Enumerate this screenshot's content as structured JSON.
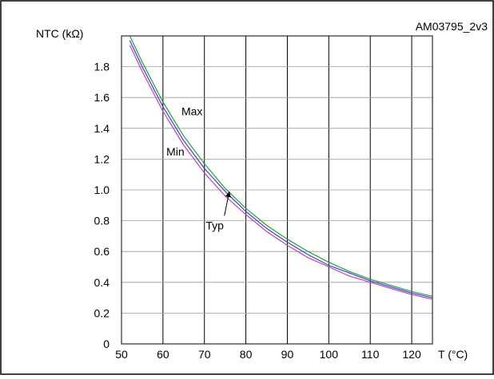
{
  "chart_data": {
    "type": "line",
    "title": "",
    "figure_id": "AM03795_2v3",
    "ylabel": "NTC (kΩ)",
    "xlabel": "T (°C)",
    "xlim": [
      50,
      125
    ],
    "ylim": [
      0,
      2.0
    ],
    "x_ticks": [
      50,
      60,
      70,
      80,
      90,
      100,
      110,
      120
    ],
    "y_ticks": [
      0,
      0.2,
      0.4,
      0.6,
      0.8,
      1.0,
      1.2,
      1.4,
      1.6,
      1.8
    ],
    "y_tick_labels": [
      "0",
      "0.2",
      "0.4",
      "0.6",
      "0.8",
      "1.0",
      "1.2",
      "1.4",
      "1.6",
      "1.8"
    ],
    "grid": true,
    "annotations": [
      {
        "text": "Max",
        "x": 67,
        "y": 1.51
      },
      {
        "text": "Min",
        "x": 63,
        "y": 1.25
      },
      {
        "text": "Typ",
        "x": 72.5,
        "y": 0.77,
        "arrow_to": [
          76,
          0.99
        ]
      }
    ],
    "series": [
      {
        "name": "Max",
        "color": "#2aa02a",
        "x": [
          52,
          55,
          60,
          65,
          70,
          75,
          80,
          85,
          90,
          95,
          100,
          105,
          110,
          115,
          120,
          125
        ],
        "y": [
          2.0,
          1.83,
          1.57,
          1.35,
          1.17,
          1.01,
          0.88,
          0.77,
          0.68,
          0.6,
          0.53,
          0.47,
          0.42,
          0.38,
          0.34,
          0.31
        ]
      },
      {
        "name": "Typ",
        "color": "#3344cc",
        "x": [
          52,
          55,
          60,
          65,
          70,
          75,
          80,
          85,
          90,
          95,
          100,
          105,
          110,
          115,
          120,
          125
        ],
        "y": [
          1.97,
          1.8,
          1.54,
          1.32,
          1.14,
          0.99,
          0.86,
          0.75,
          0.66,
          0.58,
          0.51,
          0.46,
          0.41,
          0.37,
          0.33,
          0.3
        ]
      },
      {
        "name": "Min",
        "color": "#c040c0",
        "x": [
          52,
          55,
          60,
          65,
          70,
          75,
          80,
          85,
          90,
          95,
          100,
          105,
          110,
          115,
          120,
          125
        ],
        "y": [
          1.94,
          1.77,
          1.51,
          1.29,
          1.11,
          0.96,
          0.84,
          0.73,
          0.64,
          0.56,
          0.5,
          0.44,
          0.4,
          0.36,
          0.32,
          0.29
        ]
      }
    ]
  }
}
